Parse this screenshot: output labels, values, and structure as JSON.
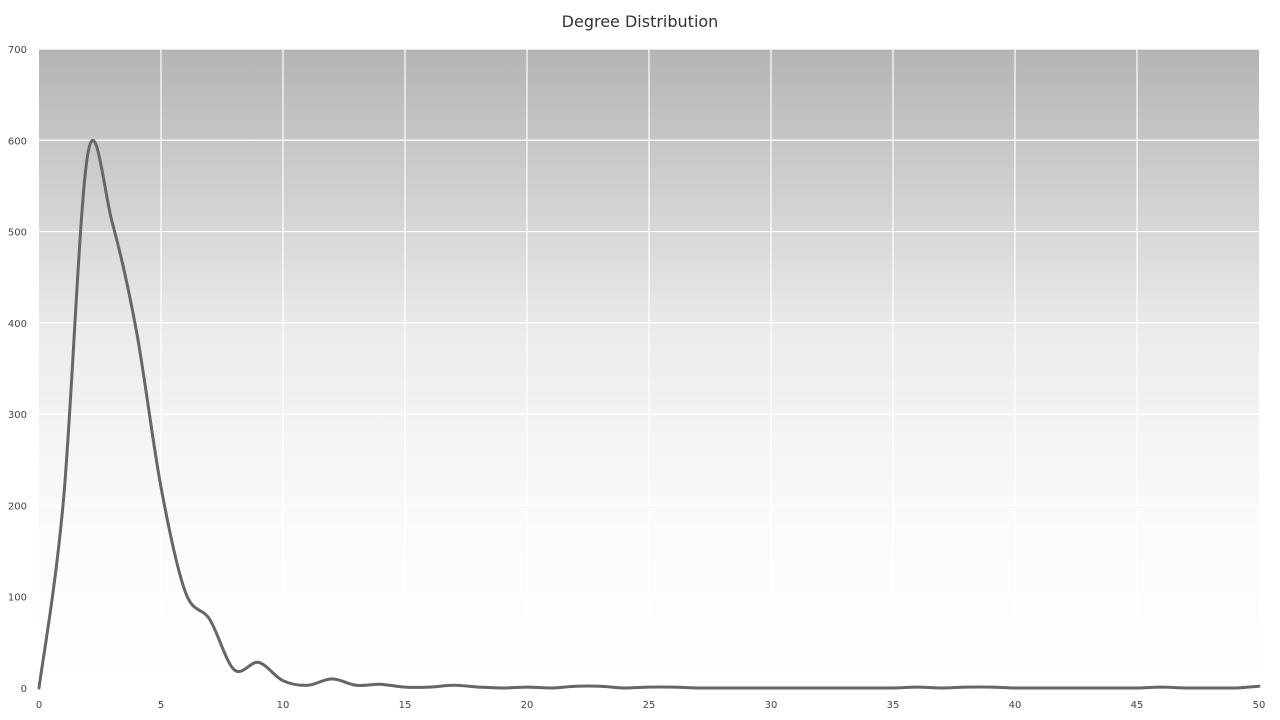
{
  "chart_data": {
    "type": "line",
    "title": "Degree Distribution",
    "xlabel": "",
    "ylabel": "",
    "xlim": [
      0,
      50
    ],
    "ylim": [
      0,
      700
    ],
    "x_ticks": [
      0,
      5,
      10,
      15,
      20,
      25,
      30,
      35,
      40,
      45,
      50
    ],
    "y_ticks": [
      0,
      100,
      200,
      300,
      400,
      500,
      600,
      700
    ],
    "grid": true,
    "legend": "none",
    "line_color": "#666666",
    "series": [
      {
        "x": [
          0,
          1,
          2,
          3,
          4,
          5,
          6,
          7,
          8,
          9,
          10,
          11,
          12,
          13,
          14,
          15,
          16,
          17,
          18,
          19,
          20,
          21,
          22,
          23,
          24,
          25,
          26,
          27,
          28,
          29,
          30,
          31,
          32,
          33,
          34,
          35,
          36,
          37,
          38,
          39,
          40,
          41,
          42,
          43,
          44,
          45,
          46,
          47,
          48,
          49,
          50
        ],
        "values": [
          0,
          205,
          585,
          510,
          390,
          220,
          105,
          75,
          20,
          28,
          8,
          3,
          10,
          3,
          4,
          1,
          1,
          3,
          1,
          0,
          1,
          0,
          2,
          2,
          0,
          1,
          1,
          0,
          0,
          0,
          0,
          0,
          0,
          0,
          0,
          0,
          1,
          0,
          1,
          1,
          0,
          0,
          0,
          0,
          0,
          0,
          1,
          0,
          0,
          0,
          2
        ]
      }
    ]
  }
}
